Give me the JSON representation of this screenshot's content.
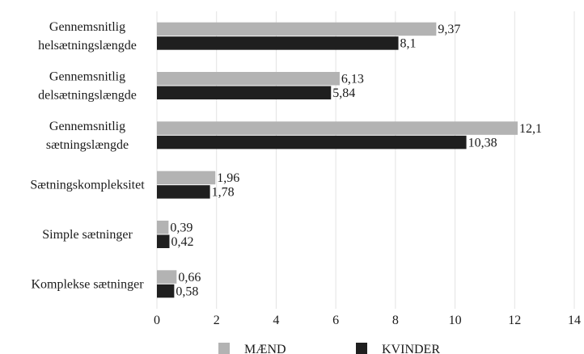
{
  "chart_data": {
    "type": "bar",
    "orientation": "horizontal",
    "categories": [
      [
        "Gennemsnitlig",
        "helsætningslængde"
      ],
      [
        "Gennemsnitlig",
        "delsætningslængde"
      ],
      [
        "Gennemsnitlig",
        "sætningslængde"
      ],
      [
        "Sætningskompleksitet"
      ],
      [
        "Simple sætninger"
      ],
      [
        "Komplekse sætninger"
      ]
    ],
    "series": [
      {
        "name": "MÆND",
        "values": [
          9.37,
          6.13,
          12.1,
          1.96,
          0.39,
          0.66
        ],
        "labels": [
          "9,37",
          "6,13",
          "12,1",
          "1,96",
          "0,39",
          "0,66"
        ],
        "color": "#b3b3b3"
      },
      {
        "name": "KVINDER",
        "values": [
          8.1,
          5.84,
          10.38,
          1.78,
          0.42,
          0.58
        ],
        "labels": [
          "8,1",
          "5,84",
          "10,38",
          "1,78",
          "0,42",
          "0,58"
        ],
        "color": "#1f1f1f"
      }
    ],
    "xlim": [
      0,
      14
    ],
    "xticks": [
      0,
      2,
      4,
      6,
      8,
      10,
      12,
      14
    ],
    "grid": "vertical",
    "legend": "bottom",
    "title": "",
    "xlabel": "",
    "ylabel": ""
  }
}
